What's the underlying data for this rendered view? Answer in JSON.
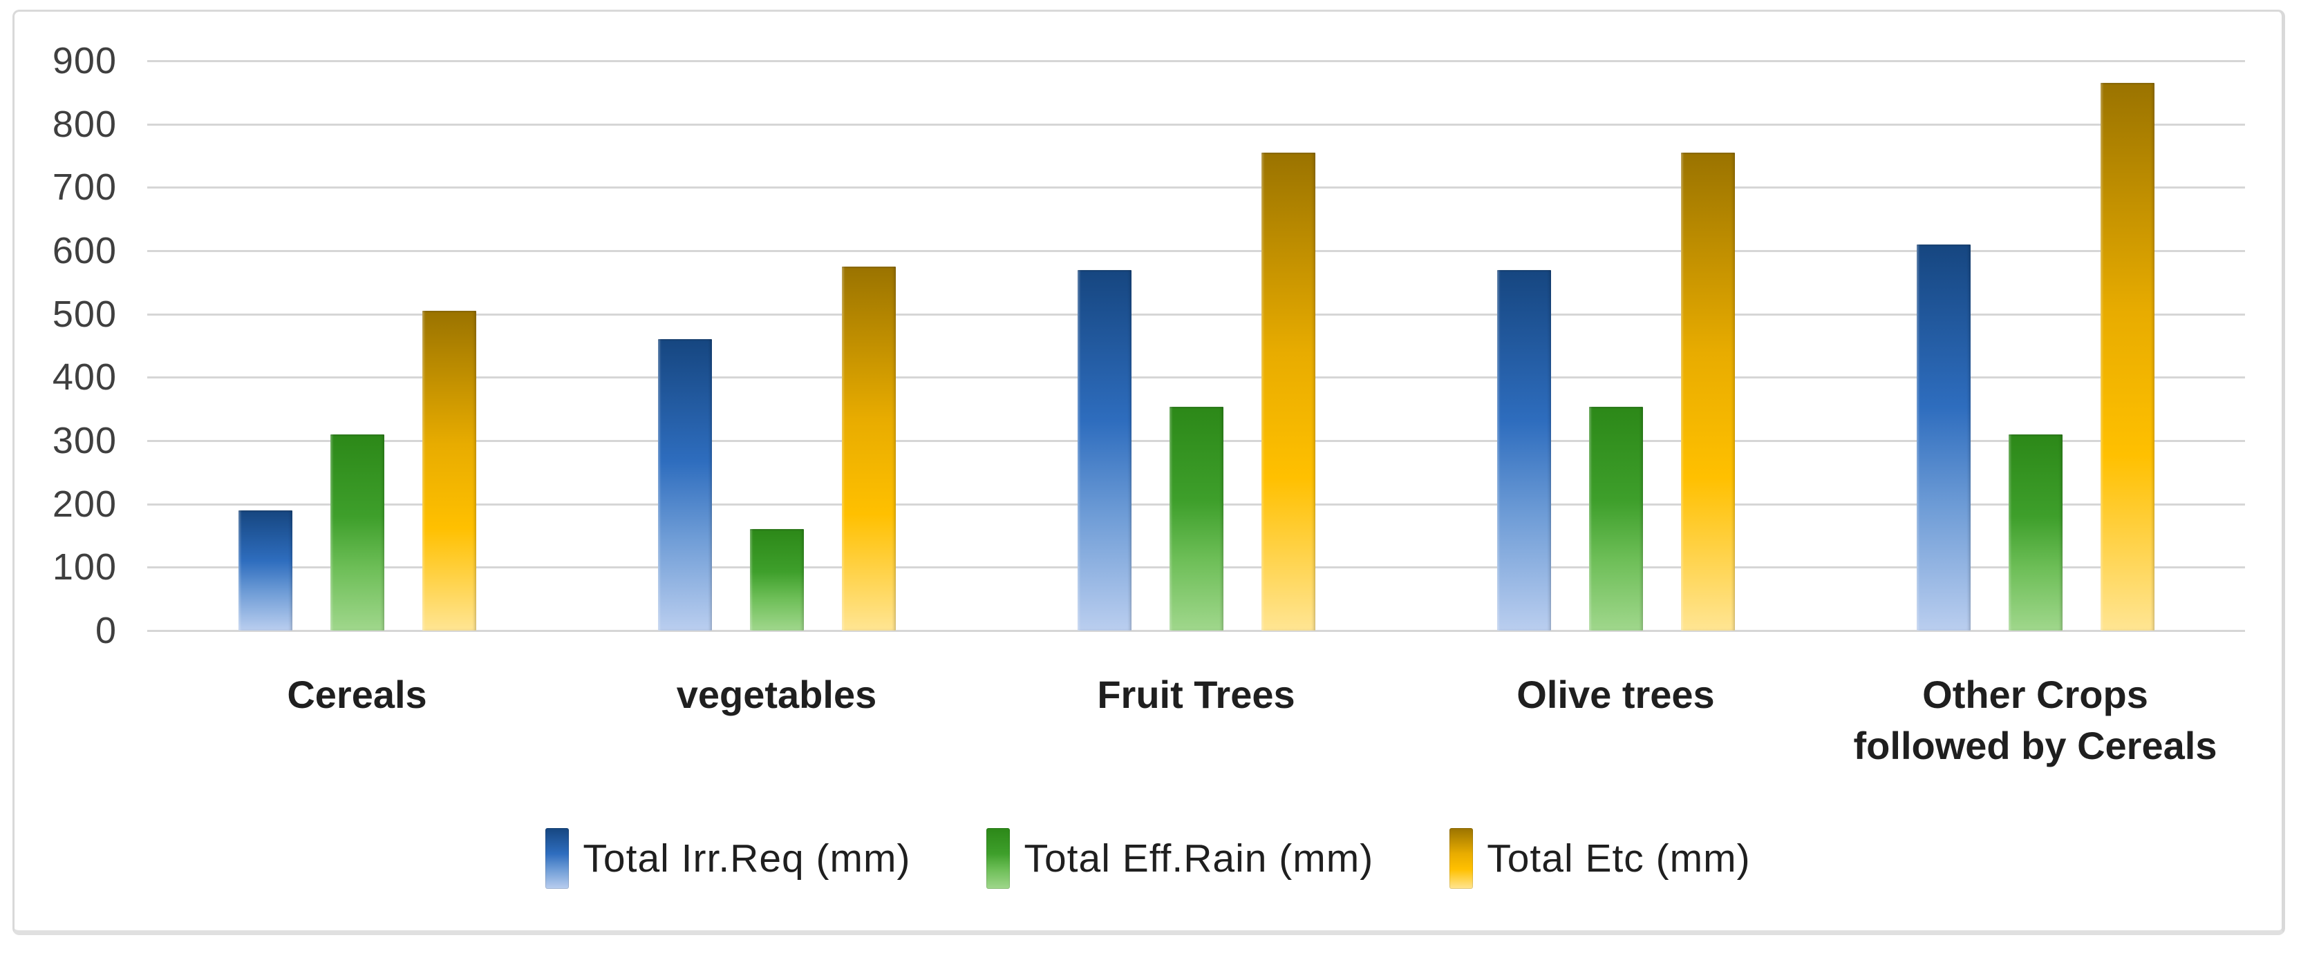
{
  "chart_data": {
    "type": "bar",
    "categories": [
      "Cereals",
      "vegetables",
      "Fruit Trees",
      "Olive trees",
      "Other Crops followed by Cereals"
    ],
    "series": [
      {
        "name": "Total Irr.Req (mm)",
        "color": "#2E6DBE",
        "gradient": {
          "top": "#164680",
          "mid": "#2E6DBE",
          "lower": "#6E9CD6",
          "bottom": "#BACEEF"
        },
        "values": [
          190,
          460,
          570,
          570,
          610
        ]
      },
      {
        "name": "Total Eff.Rain (mm)",
        "color": "#3E9F2B",
        "gradient": {
          "top": "#2C8818",
          "mid": "#3E9F2B",
          "lower": "#6DBE57",
          "bottom": "#A0D78C"
        },
        "values": [
          310,
          160,
          353,
          353,
          310
        ]
      },
      {
        "name": "Total Etc (mm)",
        "color": "#FFC000",
        "gradient": {
          "top": "#9A7300",
          "mid": "#E8AC00",
          "lower": "#FFC000",
          "bottom": "#FFE593"
        },
        "values": [
          505,
          575,
          755,
          755,
          865
        ]
      }
    ],
    "ylim": [
      0,
      900
    ],
    "yticks": [
      0,
      100,
      200,
      300,
      400,
      500,
      600,
      700,
      800,
      900
    ],
    "grid": true,
    "legend_position": "bottom",
    "gridline_color": "#D6D6D6",
    "axis_text_color": "#3F3F3F",
    "label_text_color": "#1F1F1F",
    "frame_border_color": "#D9D9D9"
  }
}
